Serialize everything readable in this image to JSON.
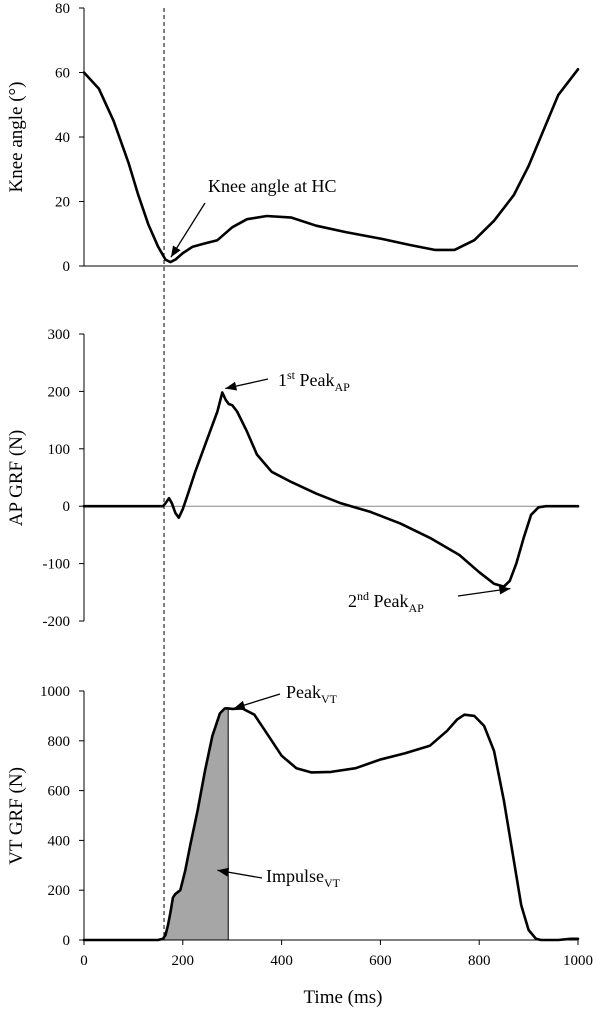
{
  "chart_data": [
    {
      "type": "line",
      "ylabel": "Knee angle (°)",
      "ylim": [
        0,
        80
      ],
      "yticks": [
        "0",
        "20",
        "40",
        "60",
        "80"
      ],
      "xlim": [
        0,
        1000
      ],
      "annotations": [
        {
          "text": "Knee angle at HC",
          "target": [
            172,
            1.5
          ]
        }
      ],
      "series": [
        {
          "x": [
            0,
            30,
            60,
            90,
            110,
            130,
            150,
            165,
            175,
            185,
            200,
            220,
            245,
            270,
            300,
            330,
            370,
            420,
            470,
            530,
            600,
            660,
            710,
            750,
            790,
            830,
            870,
            900,
            930,
            960,
            990,
            1000
          ],
          "y": [
            60,
            55,
            45,
            32,
            22,
            13,
            6,
            2,
            1.2,
            2,
            4,
            6,
            7,
            8,
            12,
            14.5,
            15.5,
            15,
            12.5,
            10.5,
            8.5,
            6.5,
            5,
            5,
            8,
            14,
            22,
            31,
            42,
            53,
            59,
            61
          ]
        }
      ]
    },
    {
      "type": "line",
      "ylabel": "AP GRF (N)",
      "ylim": [
        -200,
        300
      ],
      "yticks": [
        "-200",
        "-100",
        "0",
        "100",
        "200",
        "300"
      ],
      "xlim": [
        0,
        1000
      ],
      "annotations": [
        {
          "text": "1st Peak",
          "sup": "st",
          "base": "1",
          "main": " Peak",
          "sub": "AP",
          "target": [
            282,
            198
          ]
        },
        {
          "text": "2nd Peak",
          "sup": "nd",
          "base": "2",
          "main": " Peak",
          "sub": "AP",
          "target": [
            855,
            -140
          ]
        }
      ],
      "series": [
        {
          "x": [
            0,
            160,
            165,
            172,
            178,
            185,
            192,
            200,
            210,
            225,
            240,
            255,
            270,
            280,
            287,
            293,
            300,
            310,
            330,
            350,
            380,
            420,
            470,
            520,
            580,
            640,
            700,
            760,
            800,
            830,
            850,
            862,
            875,
            890,
            905,
            920,
            935,
            960,
            1000
          ],
          "y": [
            0,
            0,
            5,
            14,
            5,
            -12,
            -20,
            -5,
            20,
            60,
            95,
            130,
            165,
            198,
            185,
            178,
            176,
            165,
            130,
            90,
            60,
            42,
            22,
            5,
            -10,
            -30,
            -55,
            -85,
            -115,
            -135,
            -140,
            -130,
            -100,
            -55,
            -15,
            -2,
            0,
            0,
            0
          ]
        }
      ]
    },
    {
      "type": "line",
      "xlabel": "Time (ms)",
      "ylabel": "VT GRF (N)",
      "ylim": [
        0,
        1000
      ],
      "yticks": [
        "0",
        "200",
        "400",
        "600",
        "800",
        "1000"
      ],
      "xlim": [
        0,
        1000
      ],
      "xticks": [
        "0",
        "200",
        "400",
        "600",
        "800",
        "1000"
      ],
      "annotations": [
        {
          "text": "Peak",
          "main": "Peak",
          "sub": "VT",
          "target": [
            295,
            930
          ]
        },
        {
          "text": "Impulse",
          "main": "Impulse",
          "sub": "VT",
          "target": [
            262,
            280
          ]
        }
      ],
      "shaded_area": {
        "name": "Impulse",
        "x_start": 160,
        "x_end": 292
      },
      "series": [
        {
          "x": [
            0,
            150,
            160,
            165,
            170,
            175,
            180,
            185,
            195,
            205,
            215,
            230,
            245,
            260,
            275,
            285,
            292,
            300,
            320,
            345,
            370,
            400,
            430,
            460,
            500,
            550,
            600,
            650,
            700,
            735,
            755,
            770,
            790,
            810,
            830,
            850,
            870,
            885,
            900,
            915,
            925,
            935,
            960,
            985,
            1000
          ],
          "y": [
            0,
            0,
            5,
            20,
            60,
            110,
            170,
            185,
            200,
            280,
            380,
            520,
            680,
            820,
            910,
            930,
            930,
            928,
            930,
            905,
            830,
            740,
            690,
            673,
            675,
            690,
            725,
            750,
            780,
            840,
            885,
            905,
            900,
            860,
            760,
            560,
            320,
            140,
            40,
            5,
            0,
            0,
            0,
            5,
            5
          ]
        }
      ]
    }
  ]
}
